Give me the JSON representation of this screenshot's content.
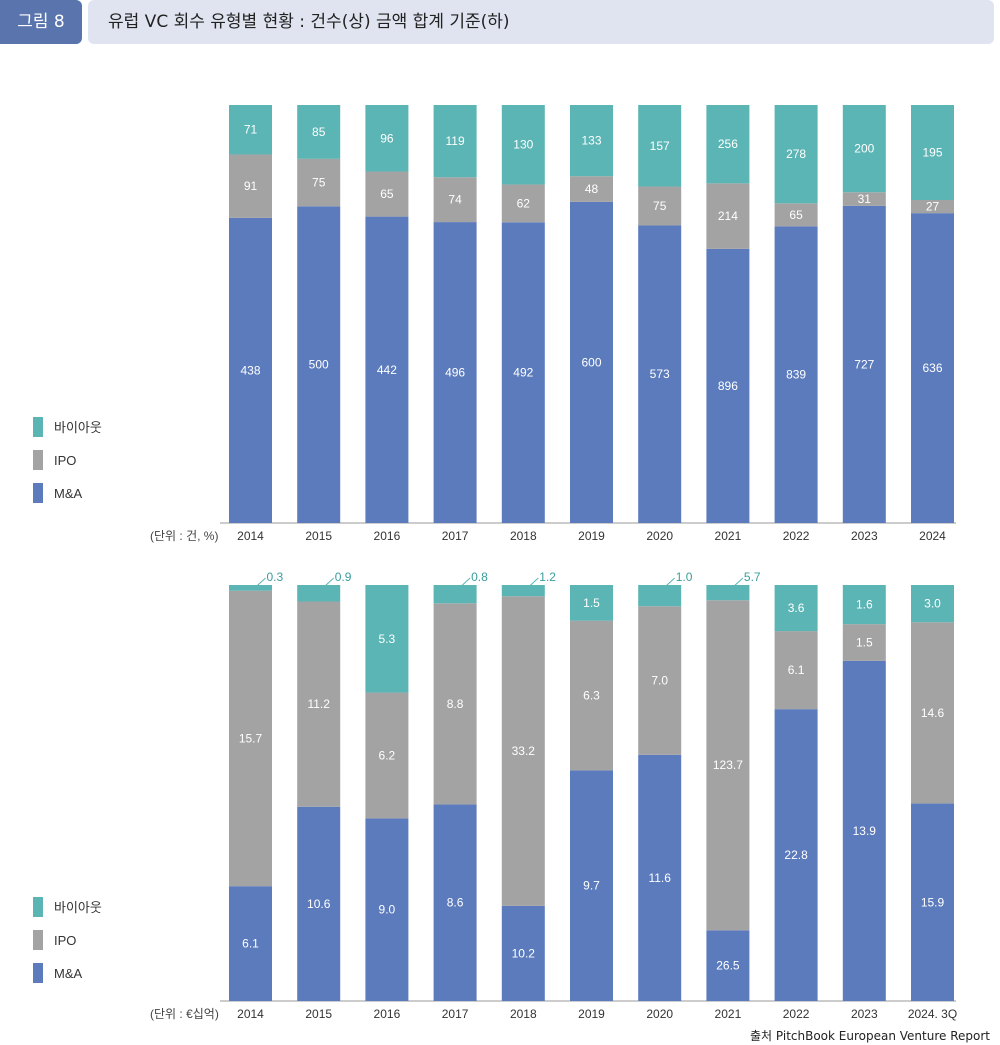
{
  "header": {
    "tag": "그림 8",
    "title": "유럽 VC 회수 유형별 현황 : 건수(상) 금액 합계 기준(하)"
  },
  "colors": {
    "buyout": "#5bb5b4",
    "ipo": "#a3a3a3",
    "ma": "#5b7bbd"
  },
  "legend": [
    "바이아웃",
    "IPO",
    "M&A"
  ],
  "source": "출처 PitchBook European Venture Report",
  "chart_data": [
    {
      "type": "bar",
      "stacked": true,
      "normalized": true,
      "unit_label": "(단위 : 건, %)",
      "categories": [
        "2014",
        "2015",
        "2016",
        "2017",
        "2018",
        "2019",
        "2020",
        "2021",
        "2022",
        "2023",
        "2024"
      ],
      "series": [
        {
          "name": "M&A",
          "values": [
            438,
            500,
            442,
            496,
            492,
            600,
            573,
            896,
            839,
            727,
            636
          ]
        },
        {
          "name": "IPO",
          "values": [
            91,
            75,
            65,
            74,
            62,
            48,
            75,
            214,
            65,
            31,
            27
          ]
        },
        {
          "name": "바이아웃",
          "values": [
            71,
            85,
            96,
            119,
            130,
            133,
            157,
            256,
            278,
            200,
            195
          ]
        }
      ]
    },
    {
      "type": "bar",
      "stacked": true,
      "normalized": true,
      "unit_label": "(단위 : €십억)",
      "categories": [
        "2014",
        "2015",
        "2016",
        "2017",
        "2018",
        "2019",
        "2020",
        "2021",
        "2022",
        "2023",
        "2024. 3Q"
      ],
      "series": [
        {
          "name": "M&A",
          "values": [
            6.1,
            10.6,
            9.0,
            8.6,
            10.2,
            9.7,
            11.6,
            26.5,
            22.8,
            13.9,
            15.9
          ],
          "labels": [
            "6.1",
            "10.6",
            "9.0",
            "8.6",
            "10.2",
            "9.7",
            "11.6",
            "26.5",
            "22.8",
            "13.9",
            "15.9"
          ]
        },
        {
          "name": "IPO",
          "values": [
            15.7,
            11.2,
            6.2,
            8.8,
            33.2,
            6.3,
            7.0,
            123.7,
            6.1,
            1.5,
            14.6
          ],
          "labels": [
            "15.7",
            "11.2",
            "6.2",
            "8.8",
            "33.2",
            "6.3",
            "7.0",
            "123.7",
            "6.1",
            "1.5",
            "14.6"
          ]
        },
        {
          "name": "바이아웃",
          "values": [
            0.3,
            0.9,
            5.3,
            0.8,
            1.2,
            1.5,
            1.0,
            5.7,
            3.6,
            1.6,
            3.0
          ],
          "labels": [
            "0.3",
            "0.9",
            "5.3",
            "0.8",
            "1.2",
            "1.5",
            "1.0",
            "5.7",
            "3.6",
            "1.6",
            "3.0"
          ]
        }
      ]
    }
  ]
}
